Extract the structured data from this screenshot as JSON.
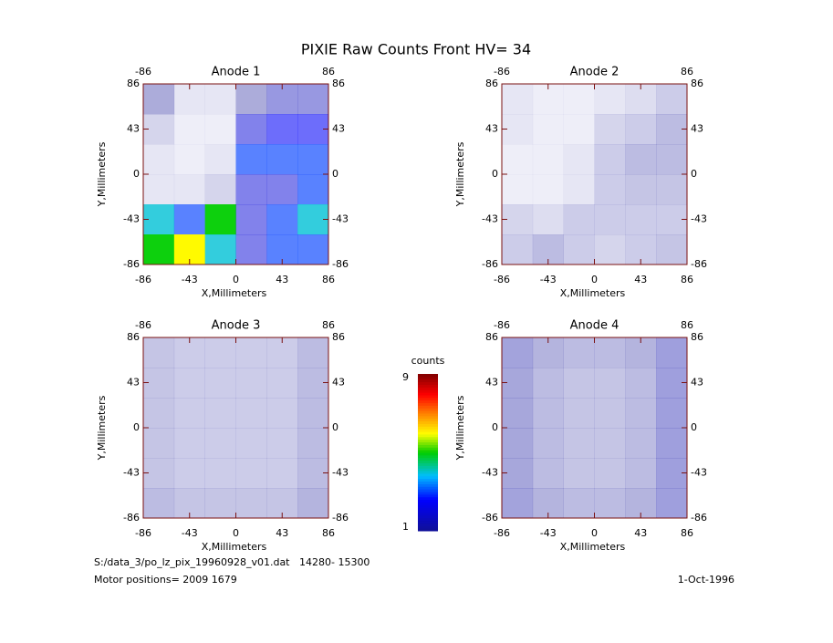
{
  "title": "PIXIE Raw Counts Front HV= 34",
  "chart_data": [
    {
      "type": "heatmap",
      "title": "Anode 1",
      "xlabel": "X,Millimeters",
      "ylabel": "Y,Millimeters",
      "xlim": [
        -86,
        86
      ],
      "ylim": [
        -86,
        86
      ],
      "xticks": [
        -86,
        -43,
        0,
        43,
        86
      ],
      "yticks": [
        -86,
        -43,
        0,
        43,
        86
      ],
      "z": [
        [
          1,
          0.3,
          0.3,
          1,
          1.5,
          1.5
        ],
        [
          0.5,
          0.2,
          0.2,
          2,
          2.5,
          2.5
        ],
        [
          0.3,
          0.2,
          0.3,
          3,
          3,
          3
        ],
        [
          0.3,
          0.3,
          0.5,
          2,
          2,
          3
        ],
        [
          4,
          3,
          5,
          2,
          3,
          4
        ],
        [
          5,
          6,
          4,
          2,
          3,
          3
        ]
      ]
    },
    {
      "type": "heatmap",
      "title": "Anode 2",
      "xlabel": "X,Millimeters",
      "ylabel": "Y,Millimeters",
      "xlim": [
        -86,
        86
      ],
      "ylim": [
        -86,
        86
      ],
      "xticks": [
        -86,
        -43,
        0,
        43,
        86
      ],
      "yticks": [
        -86,
        -43,
        0,
        43,
        86
      ],
      "z": [
        [
          0.3,
          0.2,
          0.2,
          0.3,
          0.4,
          0.6
        ],
        [
          0.3,
          0.2,
          0.2,
          0.5,
          0.6,
          0.8
        ],
        [
          0.2,
          0.2,
          0.3,
          0.6,
          0.8,
          0.8
        ],
        [
          0.2,
          0.2,
          0.3,
          0.6,
          0.7,
          0.7
        ],
        [
          0.5,
          0.4,
          0.6,
          0.6,
          0.6,
          0.6
        ],
        [
          0.6,
          0.8,
          0.6,
          0.5,
          0.6,
          0.7
        ]
      ]
    },
    {
      "type": "heatmap",
      "title": "Anode 3",
      "xlabel": "X,Millimeters",
      "ylabel": "Y,Millimeters",
      "xlim": [
        -86,
        86
      ],
      "ylim": [
        -86,
        86
      ],
      "xticks": [
        -86,
        -43,
        0,
        43,
        86
      ],
      "yticks": [
        -86,
        -43,
        0,
        43,
        86
      ],
      "z": [
        [
          0.7,
          0.6,
          0.6,
          0.6,
          0.6,
          0.8
        ],
        [
          0.7,
          0.6,
          0.6,
          0.6,
          0.6,
          0.8
        ],
        [
          0.7,
          0.6,
          0.6,
          0.6,
          0.6,
          0.8
        ],
        [
          0.7,
          0.6,
          0.6,
          0.6,
          0.6,
          0.8
        ],
        [
          0.7,
          0.6,
          0.6,
          0.6,
          0.6,
          0.8
        ],
        [
          0.8,
          0.7,
          0.7,
          0.7,
          0.7,
          0.9
        ]
      ]
    },
    {
      "type": "heatmap",
      "title": "Anode 4",
      "xlabel": "X,Millimeters",
      "ylabel": "Y,Millimeters",
      "xlim": [
        -86,
        86
      ],
      "ylim": [
        -86,
        86
      ],
      "xticks": [
        -86,
        -43,
        0,
        43,
        86
      ],
      "yticks": [
        -86,
        -43,
        0,
        43,
        86
      ],
      "z": [
        [
          1.2,
          0.9,
          0.8,
          0.8,
          0.9,
          1.3
        ],
        [
          1.1,
          0.8,
          0.7,
          0.7,
          0.8,
          1.3
        ],
        [
          1.1,
          0.8,
          0.7,
          0.7,
          0.8,
          1.3
        ],
        [
          1.1,
          0.8,
          0.7,
          0.7,
          0.8,
          1.3
        ],
        [
          1.1,
          0.8,
          0.7,
          0.7,
          0.8,
          1.3
        ],
        [
          1.2,
          0.9,
          0.8,
          0.8,
          0.9,
          1.3
        ]
      ]
    }
  ],
  "colorbar": {
    "label": "counts",
    "range": [
      1,
      9
    ],
    "ticks": [
      1,
      9
    ]
  },
  "footer": {
    "file": "S:/data_3/po_lz_pix_19960928_v01.dat   14280- 15300",
    "motor": "Motor positions= 2009 1679",
    "date": "1-Oct-1996"
  }
}
